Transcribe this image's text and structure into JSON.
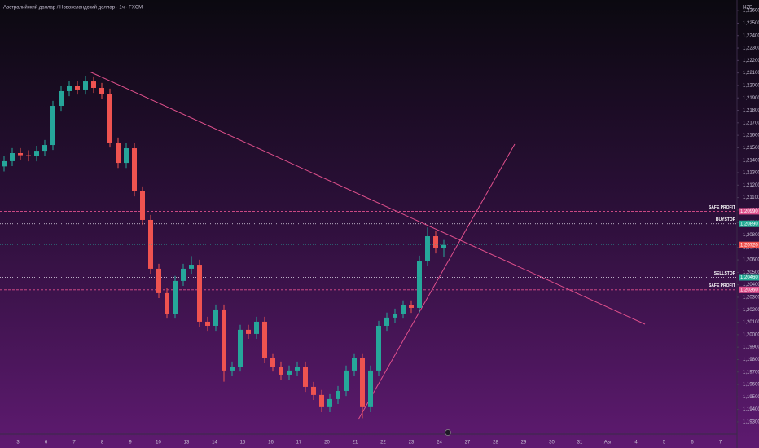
{
  "chart_data": {
    "type": "candlestick",
    "title": "Австралийский доллар / Новозеландский доллар · 1ч · FXCM",
    "currency": "NZD",
    "up_color": "#26a69a",
    "down_color": "#ef5350",
    "open": [
      1.2135,
      1.21392,
      1.21457,
      1.2144,
      1.21431,
      1.21476,
      1.21522,
      1.21836,
      1.21954,
      1.21999,
      1.21967,
      1.22032,
      1.2198,
      1.21934,
      1.21542,
      1.21378,
      1.21496,
      1.2115,
      1.20921,
      1.20529,
      1.20333,
      1.20169,
      1.20431,
      1.20529,
      1.20561,
      1.20104,
      1.20071,
      1.20202,
      1.19712,
      1.19744,
      1.20039,
      1.20006,
      1.20104,
      1.1981,
      1.19744,
      1.19679,
      1.19712,
      1.19744,
      1.19581,
      1.19516,
      1.19418,
      1.19483,
      1.19548,
      1.19712,
      1.1981,
      1.19418,
      1.19712,
      1.20071,
      1.20137,
      1.20169,
      1.20235,
      1.20215,
      1.20594,
      1.2079,
      1.20692
    ],
    "high": [
      1.21432,
      1.21497,
      1.21497,
      1.2148,
      1.21516,
      1.21562,
      1.21876,
      1.21994,
      1.22039,
      1.22039,
      1.22078,
      1.22072,
      1.2202,
      1.21974,
      1.21582,
      1.21536,
      1.21536,
      1.2119,
      1.20961,
      1.20569,
      1.20373,
      1.20471,
      1.20569,
      1.20631,
      1.20601,
      1.20144,
      1.20242,
      1.20242,
      1.19784,
      1.20079,
      1.20079,
      1.20144,
      1.20144,
      1.1985,
      1.19784,
      1.19752,
      1.19784,
      1.19784,
      1.19621,
      1.19556,
      1.19523,
      1.19588,
      1.19752,
      1.1985,
      1.1985,
      1.19752,
      1.20111,
      1.20177,
      1.20209,
      1.20275,
      1.20275,
      1.20634,
      1.2086,
      1.2083,
      1.2076
    ],
    "low": [
      1.2131,
      1.21352,
      1.214,
      1.21391,
      1.21391,
      1.21436,
      1.21482,
      1.21796,
      1.21914,
      1.21927,
      1.21927,
      1.2194,
      1.21894,
      1.21502,
      1.21338,
      1.21338,
      1.2111,
      1.20881,
      1.20489,
      1.20293,
      1.20129,
      1.20129,
      1.20391,
      1.20489,
      1.20064,
      1.20031,
      1.20031,
      1.19622,
      1.19672,
      1.19704,
      1.19966,
      1.19966,
      1.1977,
      1.19704,
      1.19639,
      1.19639,
      1.19672,
      1.19541,
      1.19476,
      1.19378,
      1.19378,
      1.19443,
      1.19508,
      1.19672,
      1.1933,
      1.19378,
      1.19672,
      1.20031,
      1.20097,
      1.20129,
      1.20175,
      1.20175,
      1.20554,
      1.20652,
      1.2062
    ],
    "close": [
      1.21392,
      1.21457,
      1.2144,
      1.21431,
      1.21476,
      1.21522,
      1.21836,
      1.21954,
      1.21999,
      1.21967,
      1.22032,
      1.2198,
      1.21934,
      1.21542,
      1.21378,
      1.21496,
      1.2115,
      1.20921,
      1.20529,
      1.20333,
      1.20169,
      1.20431,
      1.20529,
      1.20561,
      1.20104,
      1.20071,
      1.20202,
      1.19712,
      1.19744,
      1.20039,
      1.20006,
      1.20104,
      1.1981,
      1.19744,
      1.19679,
      1.19712,
      1.19744,
      1.19581,
      1.19516,
      1.19418,
      1.19483,
      1.19548,
      1.19712,
      1.1981,
      1.19418,
      1.19712,
      1.20071,
      1.20137,
      1.20169,
      1.20235,
      1.20215,
      1.20594,
      1.2079,
      1.20692,
      1.2072
    ],
    "x_labels": [
      "3",
      "6",
      "7",
      "8",
      "9",
      "10",
      "13",
      "14",
      "15",
      "16",
      "17",
      "20",
      "21",
      "22",
      "23",
      "24",
      "27",
      "28",
      "29",
      "30",
      "31",
      "Авг",
      "4",
      "5",
      "6",
      "7"
    ],
    "ylim": [
      1.19208,
      1.22686
    ],
    "yticks": [
      {
        "value": 1.193,
        "label": "1,19300"
      },
      {
        "value": 1.194,
        "label": "1,19400"
      },
      {
        "value": 1.195,
        "label": "1,19500"
      },
      {
        "value": 1.196,
        "label": "1,19600"
      },
      {
        "value": 1.197,
        "label": "1,19700"
      },
      {
        "value": 1.198,
        "label": "1,19800"
      },
      {
        "value": 1.199,
        "label": "1,19900"
      },
      {
        "value": 1.2,
        "label": "1,20000"
      },
      {
        "value": 1.201,
        "label": "1,20100"
      },
      {
        "value": 1.202,
        "label": "1,20200"
      },
      {
        "value": 1.203,
        "label": "1,20300"
      },
      {
        "value": 1.204,
        "label": "1,20400"
      },
      {
        "value": 1.205,
        "label": "1,20500"
      },
      {
        "value": 1.206,
        "label": "1,20600"
      },
      {
        "value": 1.207,
        "label": "1,20700"
      },
      {
        "value": 1.208,
        "label": "1,20800"
      },
      {
        "value": 1.209,
        "label": "1,20900"
      },
      {
        "value": 1.21,
        "label": "1,21000"
      },
      {
        "value": 1.211,
        "label": "1,21100"
      },
      {
        "value": 1.212,
        "label": "1,21200"
      },
      {
        "value": 1.213,
        "label": "1,21300"
      },
      {
        "value": 1.214,
        "label": "1,21400"
      },
      {
        "value": 1.215,
        "label": "1,21500"
      },
      {
        "value": 1.216,
        "label": "1,21600"
      },
      {
        "value": 1.217,
        "label": "1,21700"
      },
      {
        "value": 1.218,
        "label": "1,21800"
      },
      {
        "value": 1.219,
        "label": "1,21900"
      },
      {
        "value": 1.22,
        "label": "1,22000"
      },
      {
        "value": 1.221,
        "label": "1,22100"
      },
      {
        "value": 1.222,
        "label": "1,22200"
      },
      {
        "value": 1.223,
        "label": "1,22300"
      },
      {
        "value": 1.224,
        "label": "1,22400"
      },
      {
        "value": 1.225,
        "label": "1,22500"
      },
      {
        "value": 1.226,
        "label": "1,22600"
      }
    ],
    "levels": [
      {
        "name": "SAFE PROFIT",
        "price": {
          "value": 1.2099,
          "label": "1,20990"
        },
        "color": "#e0508c",
        "style": "dashed"
      },
      {
        "name": "BUYSTOP",
        "price": {
          "value": 1.2089,
          "label": "1,20890"
        },
        "color": "#22ab94",
        "style": "dotted"
      },
      {
        "name": "SELLSTOP",
        "price": {
          "value": 1.2046,
          "label": "1,20460"
        },
        "color": "#22ab94",
        "style": "dotted"
      },
      {
        "name": "SAFE PROFIT",
        "price": {
          "value": 1.2036,
          "label": "1,20360"
        },
        "color": "#e0508c",
        "style": "dashed"
      }
    ],
    "last_price": {
      "value": 1.2072,
      "label": "1,20720"
    }
  }
}
